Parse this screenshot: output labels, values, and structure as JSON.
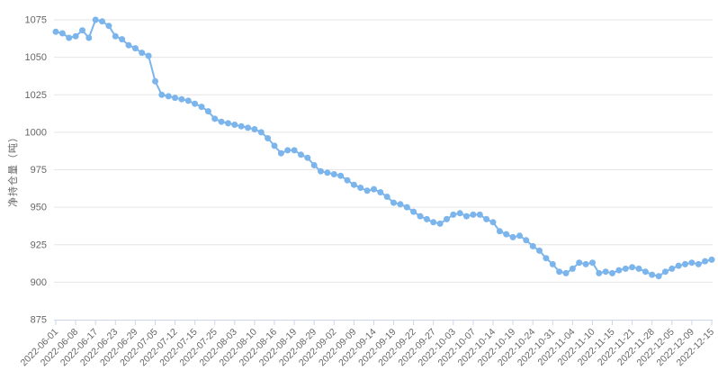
{
  "chart_data": {
    "type": "line",
    "title": "",
    "xlabel": "",
    "ylabel": "净持仓量（吨）",
    "ylim": [
      875,
      1075
    ],
    "yticks": [
      875,
      900,
      925,
      950,
      975,
      1000,
      1025,
      1050,
      1075
    ],
    "grid": "horizontal",
    "legend": "none",
    "x_tick_labels": [
      "2022-06-01",
      "2022-06-08",
      "2022-06-17",
      "2022-06-23",
      "2022-06-29",
      "2022-07-05",
      "2022-07-12",
      "2022-07-15",
      "2022-07-25",
      "2022-08-03",
      "2022-08-10",
      "2022-08-16",
      "2022-08-19",
      "2022-08-29",
      "2022-09-02",
      "2022-09-09",
      "2022-09-14",
      "2022-09-19",
      "2022-09-22",
      "2022-09-27",
      "2022-10-03",
      "2022-10-07",
      "2022-10-14",
      "2022-10-19",
      "2022-10-24",
      "2022-10-31",
      "2022-11-04",
      "2022-11-10",
      "2022-11-15",
      "2022-11-21",
      "2022-11-28",
      "2022-12-05",
      "2022-12-09",
      "2022-12-15"
    ],
    "points_per_tick": 3,
    "series": [
      {
        "values": [
          1067,
          1066,
          1063,
          1064,
          1068,
          1063,
          1075,
          1074,
          1071,
          1064,
          1062,
          1058,
          1056,
          1053,
          1051,
          1034,
          1025,
          1024,
          1023,
          1022,
          1021,
          1019,
          1017,
          1014,
          1009,
          1007,
          1006,
          1005,
          1004,
          1003,
          1002,
          1000,
          996,
          991,
          986,
          988,
          988,
          985,
          983,
          978,
          974,
          973,
          972,
          971,
          968,
          965,
          963,
          961,
          962,
          960,
          957,
          953,
          952,
          950,
          947,
          944,
          942,
          940,
          939,
          942,
          945,
          946,
          944,
          945,
          945,
          942,
          940,
          934,
          932,
          930,
          931,
          928,
          924,
          921,
          916,
          912,
          907,
          906,
          909,
          913,
          912,
          913,
          906,
          907,
          906,
          908,
          909,
          910,
          909,
          907,
          905,
          904,
          907,
          909,
          911,
          912,
          913,
          912,
          914,
          915
        ]
      }
    ],
    "style": {
      "line_color": "#7cb5ec",
      "marker_color": "#7cb5ec",
      "marker_radius": 3.5,
      "line_width": 2,
      "grid_color": "#e6e6e6",
      "axis_line_color": "#ccd6eb",
      "tick_color": "#ccd6eb",
      "label_color": "#666666",
      "background": "#ffffff"
    }
  }
}
